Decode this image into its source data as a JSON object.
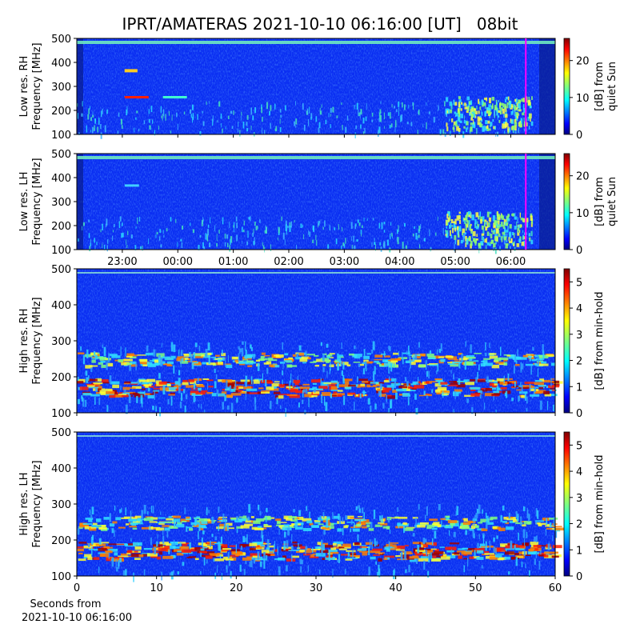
{
  "title": "IPRT/AMATERAS 2021-10-10 06:16:00 [UT]   08bit",
  "chart_data": [
    {
      "type": "spectrogram",
      "ylabel": [
        "Low res. RH",
        "Frequency [MHz]"
      ],
      "ylim": [
        100,
        500
      ],
      "yticks": [
        100,
        200,
        300,
        400,
        500
      ],
      "xlim": [
        -1.82,
        6.8
      ],
      "marker_x": 6.27,
      "marker_color": "#ff00ff",
      "colorbar": {
        "label": [
          "[dB] from",
          "quiet Sun"
        ],
        "lim": [
          0,
          26
        ],
        "ticks": [
          0,
          10,
          20
        ]
      }
    },
    {
      "type": "spectrogram",
      "ylabel": [
        "Low res. LH",
        "Frequency [MHz]"
      ],
      "ylim": [
        100,
        500
      ],
      "yticks": [
        100,
        200,
        300,
        400,
        500
      ],
      "xlim": [
        -1.82,
        6.8
      ],
      "marker_x": 6.27,
      "marker_color": "#ff00ff",
      "xticks": [
        {
          "value": -1,
          "label": "23:00"
        },
        {
          "value": 0,
          "label": "00:00"
        },
        {
          "value": 1,
          "label": "01:00"
        },
        {
          "value": 2,
          "label": "02:00"
        },
        {
          "value": 3,
          "label": "03:00"
        },
        {
          "value": 4,
          "label": "04:00"
        },
        {
          "value": 5,
          "label": "05:00"
        },
        {
          "value": 6,
          "label": "06:00"
        }
      ],
      "colorbar": {
        "label": [
          "[dB] from",
          "quiet Sun"
        ],
        "lim": [
          0,
          26
        ],
        "ticks": [
          0,
          10,
          20
        ]
      }
    },
    {
      "type": "spectrogram",
      "ylabel": [
        "High res. RH",
        "Frequency [MHz]"
      ],
      "ylim": [
        100,
        500
      ],
      "yticks": [
        100,
        200,
        300,
        400,
        500
      ],
      "xlim": [
        0,
        60
      ],
      "colorbar": {
        "label": [
          "[dB] from min-hold"
        ],
        "lim": [
          0,
          5.5
        ],
        "ticks": [
          0,
          1,
          2,
          3,
          4,
          5
        ]
      }
    },
    {
      "type": "spectrogram",
      "ylabel": [
        "High res. LH",
        "Frequency [MHz]"
      ],
      "ylim": [
        100,
        500
      ],
      "yticks": [
        100,
        200,
        300,
        400,
        500
      ],
      "xlim": [
        0,
        60
      ],
      "xticks": [
        0,
        10,
        20,
        30,
        40,
        50,
        60
      ],
      "xlabel": [
        "Seconds from",
        "2021-10-10 06:16:00"
      ],
      "colorbar": {
        "label": [
          "[dB] from min-hold"
        ],
        "lim": [
          0,
          5.5
        ],
        "ticks": [
          0,
          1,
          2,
          3,
          4,
          5
        ]
      }
    }
  ]
}
